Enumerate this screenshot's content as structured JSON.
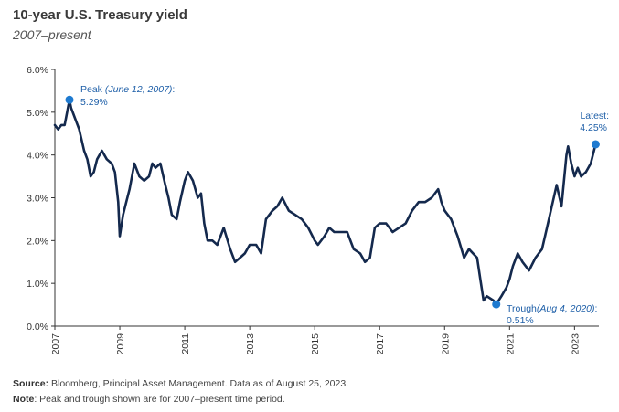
{
  "chart_data": {
    "type": "line",
    "title": "10-year U.S. Treasury yield",
    "subtitle": "2007–present",
    "xlabel": "",
    "ylabel": "",
    "xlim": [
      2007,
      2023.75
    ],
    "ylim": [
      0,
      6
    ],
    "yticks": [
      "0.0%",
      "1.0%",
      "2.0%",
      "3.0%",
      "4.0%",
      "5.0%",
      "6.0%"
    ],
    "xticks": [
      "2007",
      "2009",
      "2011",
      "2013",
      "2015",
      "2017",
      "2019",
      "2021",
      "2023"
    ],
    "grid": false,
    "line_color": "#14294d",
    "accent_color": "#1e7ad0",
    "series": [
      {
        "x": [
          2007.0,
          2007.1,
          2007.2,
          2007.3,
          2007.45,
          2007.5,
          2007.6,
          2007.75,
          2007.9,
          2008.0,
          2008.1,
          2008.2,
          2008.3,
          2008.45,
          2008.6,
          2008.75,
          2008.85,
          2008.95,
          2009.0,
          2009.1,
          2009.2,
          2009.3,
          2009.45,
          2009.6,
          2009.75,
          2009.9,
          2010.0,
          2010.1,
          2010.25,
          2010.4,
          2010.5,
          2010.6,
          2010.75,
          2010.85,
          2011.0,
          2011.1,
          2011.25,
          2011.4,
          2011.5,
          2011.6,
          2011.7,
          2011.85,
          2012.0,
          2012.2,
          2012.4,
          2012.55,
          2012.7,
          2012.85,
          2013.0,
          2013.2,
          2013.35,
          2013.5,
          2013.7,
          2013.85,
          2014.0,
          2014.2,
          2014.4,
          2014.6,
          2014.8,
          2015.0,
          2015.1,
          2015.3,
          2015.45,
          2015.6,
          2015.8,
          2016.0,
          2016.2,
          2016.4,
          2016.55,
          2016.7,
          2016.85,
          2017.0,
          2017.2,
          2017.4,
          2017.6,
          2017.8,
          2018.0,
          2018.2,
          2018.4,
          2018.6,
          2018.8,
          2018.9,
          2019.0,
          2019.2,
          2019.4,
          2019.6,
          2019.75,
          2020.0,
          2020.1,
          2020.2,
          2020.3,
          2020.5,
          2020.59,
          2020.75,
          2020.9,
          2021.0,
          2021.1,
          2021.25,
          2021.4,
          2021.6,
          2021.8,
          2022.0,
          2022.15,
          2022.3,
          2022.45,
          2022.6,
          2022.75,
          2022.8,
          2022.9,
          2023.0,
          2023.1,
          2023.2,
          2023.35,
          2023.5,
          2023.65
        ],
        "values": [
          4.7,
          4.6,
          4.7,
          4.7,
          5.29,
          5.1,
          4.9,
          4.6,
          4.1,
          3.9,
          3.5,
          3.6,
          3.9,
          4.1,
          3.9,
          3.8,
          3.6,
          2.9,
          2.1,
          2.6,
          2.9,
          3.2,
          3.8,
          3.5,
          3.4,
          3.5,
          3.8,
          3.7,
          3.8,
          3.3,
          3.0,
          2.6,
          2.5,
          2.9,
          3.4,
          3.6,
          3.4,
          3.0,
          3.1,
          2.4,
          2.0,
          2.0,
          1.9,
          2.3,
          1.8,
          1.5,
          1.6,
          1.7,
          1.9,
          1.9,
          1.7,
          2.5,
          2.7,
          2.8,
          3.0,
          2.7,
          2.6,
          2.5,
          2.3,
          2.0,
          1.9,
          2.1,
          2.3,
          2.2,
          2.2,
          2.2,
          1.8,
          1.7,
          1.5,
          1.6,
          2.3,
          2.4,
          2.4,
          2.2,
          2.3,
          2.4,
          2.7,
          2.9,
          2.9,
          3.0,
          3.2,
          2.9,
          2.7,
          2.5,
          2.1,
          1.6,
          1.8,
          1.6,
          1.1,
          0.6,
          0.7,
          0.6,
          0.51,
          0.7,
          0.9,
          1.1,
          1.4,
          1.7,
          1.5,
          1.3,
          1.6,
          1.8,
          2.3,
          2.8,
          3.3,
          2.8,
          4.0,
          4.2,
          3.8,
          3.5,
          3.7,
          3.5,
          3.6,
          3.8,
          4.25
        ]
      }
    ],
    "annotations": {
      "peak_label": "Peak",
      "peak_date": "(June 12, 2007)",
      "peak_colon": ":",
      "peak_value": "5.29%",
      "peak_x": 2007.45,
      "peak_y": 5.29,
      "trough_label": "Trough",
      "trough_date": "(Aug 4, 2020)",
      "trough_colon": ":",
      "trough_value": "0.51%",
      "trough_x": 2020.59,
      "trough_y": 0.51,
      "latest_label": "Latest:",
      "latest_value": "4.25%",
      "latest_x": 2023.65,
      "latest_y": 4.25
    }
  },
  "footer": {
    "source_label": "Source:",
    "source_text": " Bloomberg, Principal Asset Management. Data as of August 25, 2023.",
    "note_label": "Note",
    "note_text": ": Peak and trough shown are for 2007–present time period."
  }
}
